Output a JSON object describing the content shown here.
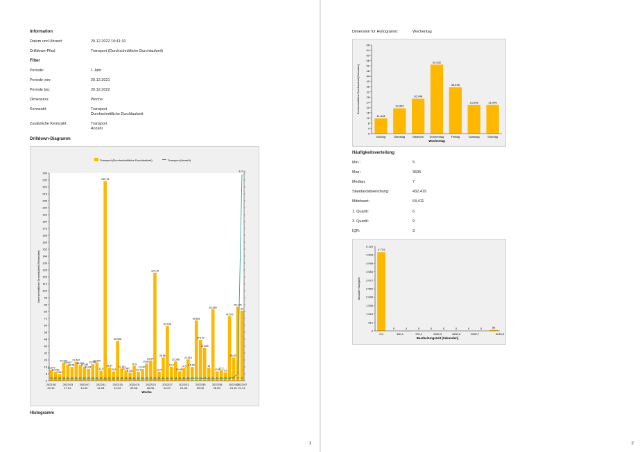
{
  "page1": {
    "info_heading": "Information",
    "date_label": "Datum und Uhrzeit:",
    "date_value": "20.12.2022 10:41:10",
    "drill_label": "Drilldown-Pfad:",
    "drill_value": "Transport (Durchschnittliche Durchlaufzeit)",
    "filter_heading": "Filter",
    "period_label": "Periode:",
    "period_value": "1 Jahr",
    "from_label": "Periode von:",
    "from_value": "20.12.2021",
    "to_label": "Periode bis;",
    "to_value": "20.12.2022",
    "dim_label": "Dimension:",
    "dim_value": "Woche",
    "kpi_label": "Kennzahl:",
    "kpi_value": "Transport\nDurchschnittliche Durchlaufzeit",
    "extra_label": "Zusätzliche Kennzahl:",
    "extra_value": "Transport\nAnzahl",
    "drill_chart_heading": "Drilldown-Diagramm",
    "hist_heading": "Histogramm",
    "page_number": "1"
  },
  "page2": {
    "dim_hist_label": "Dimension für Histogramm:",
    "dim_hist_value": "Wochentag",
    "freq_heading": "Häufigkeitsverteilung",
    "min_label": "Min.:",
    "min_value": "5",
    "max_label": "Max.:",
    "max_value": "3606",
    "median_label": "Median:",
    "median_value": "7",
    "std_label": "Standardabweichung:",
    "std_value": "432,419",
    "mean_label": "Mittelwert:",
    "mean_value": "64,411",
    "q1_label": "1. Quartil:",
    "q1_value": "6",
    "q3_label": "3. Quartil:",
    "q3_value": "9",
    "iqr_label": "IQR:",
    "iqr_value": "3",
    "page_number": "2"
  },
  "colors": {
    "bar": "#ffb800",
    "line": "#2a9d8f",
    "plot_bg": "#ffffff",
    "panel_bg": "#f0f0f0"
  },
  "chart_data": [
    {
      "id": "drilldown",
      "type": "bar",
      "legend": [
        "Transport (Durchschnittliche Durchlaufzeit)",
        "Transport (Anzahl)"
      ],
      "xlabel": "Woche",
      "ylabel": "Durchschnittliche Durchlaufzeit [Sekunden]",
      "ylim": [
        0,
        240
      ],
      "yticks": [
        0,
        8,
        16,
        24,
        32,
        40,
        48,
        56,
        64,
        72,
        80,
        88,
        96,
        104,
        112,
        120,
        128,
        136,
        144,
        152,
        160,
        168,
        176,
        184,
        192,
        200,
        208,
        216,
        224,
        232,
        240
      ],
      "x_tick_labels": [
        "2021/51\n20.12.",
        "2022/03\n17.01.",
        "2022/07\n14.02.",
        "2022/11\n14.03.",
        "2022/15\n11.04.",
        "2022/19\n09.05.",
        "2022/23\n06.06.",
        "2022/27\n04.07.",
        "2022/31\n01.08.",
        "2022/35\n29.08.",
        "2022/39\n26.09.",
        "2022/43\n24.10.",
        "2022/47\n21.11."
      ],
      "values": [
        12.679,
        10.333,
        7.667,
        20.973,
        18.667,
        15.967,
        21.667,
        18.091,
        16.285,
        13.643,
        19.048,
        20.949,
        11.5,
        230.75,
        15.37,
        10.8,
        45.926,
        14.191,
        11.967,
        9.333,
        16.9,
        10.4,
        13.429,
        19.829,
        23.344,
        124.78,
        10.4,
        26.867,
        63.038,
        16.2,
        22.308,
        10.884,
        14.5,
        24.516,
        15.958,
        69.661,
        47.147,
        37.818,
        15.0,
        82.568,
        10.8,
        12.2,
        9.5,
        74.576,
        26.829,
        85.765,
        81.0
      ],
      "data_labels": [
        "12,679",
        "10,333",
        "7,667",
        "20,973",
        "18,667",
        "15,967",
        "21,667",
        "18,091",
        "16,285",
        "13,643",
        "19,048",
        "20,949",
        "11,5",
        "230,75",
        "15,37",
        "10,8",
        "45,926",
        "14,191",
        "11,967",
        "9,333",
        "16,9",
        "10,4",
        "13,429",
        "19,829",
        "23,344",
        "124,78",
        "10,4",
        "26,867",
        "63,038",
        "16,2",
        "22,308",
        "10,884",
        "14,5",
        "24,516",
        "15,958",
        "69,661",
        "47,147",
        "37,818",
        "15",
        "82,568",
        "10,8",
        "12,2",
        "9,5",
        "74,576",
        "26,829",
        "85,765",
        "81"
      ],
      "bar_bottom_labels": [
        "22",
        "27",
        "25",
        "22",
        "23",
        "24",
        "21",
        "27",
        "23",
        "25",
        "21",
        "23",
        "22",
        "20",
        "27",
        "21",
        "25",
        "22",
        "20",
        "28",
        "24",
        "22",
        "21",
        "23",
        "27",
        "22",
        "25",
        "26",
        "22",
        "24",
        "23",
        "22",
        "21",
        "25",
        "23",
        "22",
        "24",
        "27",
        "23",
        "22",
        "21",
        "26",
        "25",
        "22",
        "23",
        "24",
        "22"
      ],
      "line_values": [
        4,
        5,
        3,
        4,
        6,
        5,
        4,
        3,
        5,
        4,
        6,
        5,
        3,
        1,
        4,
        5,
        3,
        4,
        5,
        6,
        4,
        3,
        5,
        4,
        3,
        2,
        5,
        4,
        3,
        6,
        5,
        4,
        6,
        5,
        18,
        12,
        8,
        20,
        6,
        5,
        8,
        10,
        12,
        14,
        30,
        80,
        3014
      ],
      "line_top_label": "3 014"
    },
    {
      "id": "weekday",
      "type": "bar",
      "xlabel": "Wochentag",
      "ylabel": "Durchschnittliche Durchlaufzeit [Sekunden]",
      "ylim": [
        0,
        68
      ],
      "yticks": [
        0,
        4,
        8,
        12,
        16,
        20,
        24,
        28,
        32,
        36,
        40,
        44,
        48,
        52,
        56,
        60,
        64,
        68
      ],
      "categories": [
        "Montag",
        "Dienstag",
        "Mittwoch",
        "Donnerstag",
        "Freitag",
        "Samstag",
        "Sonntag"
      ],
      "values": [
        11.643,
        19.393,
        26.746,
        52.932,
        35.495,
        21.938,
        21.996
      ],
      "data_labels": [
        "11,643",
        "19,393",
        "26,746",
        "52,932",
        "35,495",
        "21,938",
        "21,996"
      ]
    },
    {
      "id": "histogram",
      "type": "bar",
      "xlabel": "Bearbeitungszeit [Sekunden]",
      "ylabel": "Absolute Häufigkeit",
      "ylim": [
        0,
        5120
      ],
      "yticks": [
        0,
        512,
        1024,
        1536,
        2048,
        2560,
        3072,
        3584,
        4096,
        4608,
        5120
      ],
      "ytick_labels": [
        "0",
        "512",
        "1 024",
        "1 536",
        "2 048",
        "2 560",
        "3 072",
        "3 584",
        "4 096",
        "4 608",
        "5 120"
      ],
      "x_tick_labels": [
        "0,0",
        "360,1",
        "720,2",
        "1080,3",
        "1800,5",
        "2520,7",
        "3240,9"
      ],
      "values": [
        4774,
        0,
        4,
        0,
        0,
        0,
        0,
        0,
        0,
        55
      ],
      "data_labels": [
        "4 774",
        "0",
        "4",
        "0",
        "0",
        "0",
        "0",
        "0",
        "0",
        "55"
      ]
    }
  ]
}
